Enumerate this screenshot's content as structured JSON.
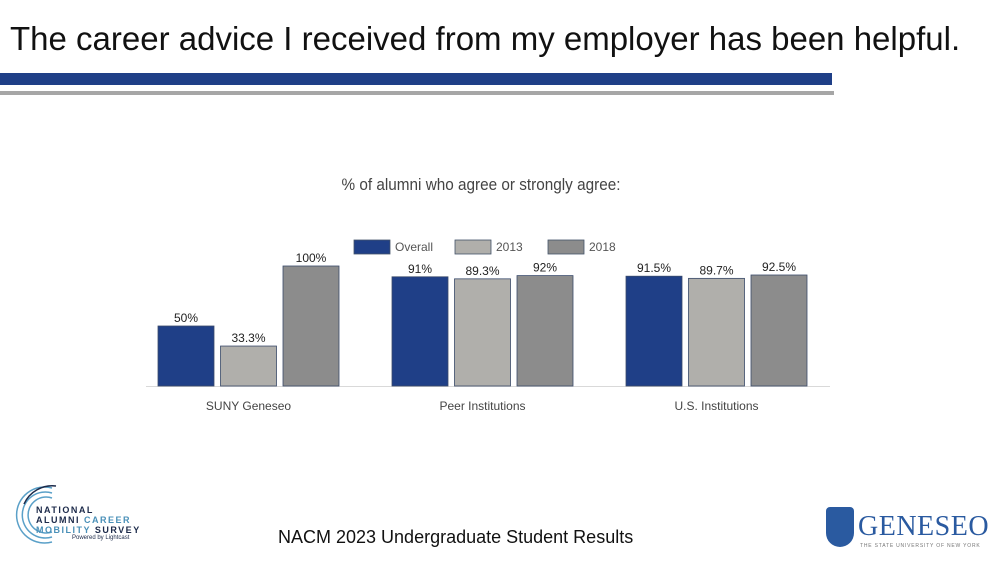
{
  "slide": {
    "title": "The career advice I received from my employer has been helpful.",
    "footer": "NACM 2023 Undergraduate Student Results",
    "logos": {
      "nacm": {
        "line1": "NATIONAL",
        "line2a": "ALUMNI ",
        "line2b": "CAREER",
        "line3a": "MOBILITY ",
        "line3b": "SURVEY",
        "powered": "Powered by Lightcast"
      },
      "geneseo": {
        "name": "GENESEO",
        "sub": "THE STATE UNIVERSITY OF NEW YORK"
      }
    }
  },
  "chart_data": {
    "type": "bar",
    "title": "% of alumni who agree or strongly agree:",
    "categories": [
      "SUNY Geneseo",
      "Peer Institutions",
      "U.S. Institutions"
    ],
    "series": [
      {
        "name": "Overall",
        "values": [
          50,
          91,
          91.5
        ],
        "labels": [
          "50%",
          "91%",
          "91.5%"
        ],
        "color": "#1f3f87"
      },
      {
        "name": "2013",
        "values": [
          33.3,
          89.3,
          89.7
        ],
        "labels": [
          "33.3%",
          "89.3%",
          "89.7%"
        ],
        "color": "#b0afab"
      },
      {
        "name": "2018",
        "values": [
          100,
          92,
          92.5
        ],
        "labels": [
          "100%",
          "92%",
          "92.5%"
        ],
        "color": "#8c8c8c"
      }
    ],
    "ylim": [
      0,
      100
    ],
    "grid": false,
    "legend": "top-center"
  }
}
